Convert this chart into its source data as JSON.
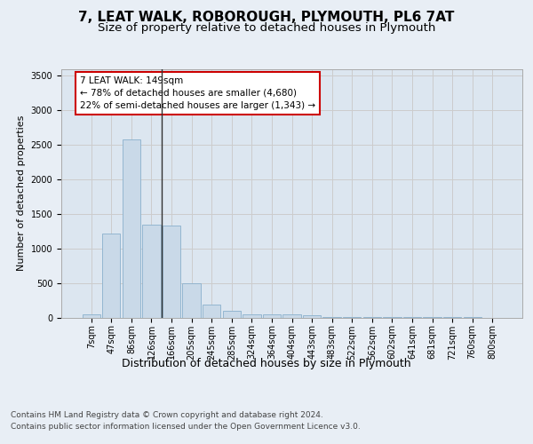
{
  "title1": "7, LEAT WALK, ROBOROUGH, PLYMOUTH, PL6 7AT",
  "title2": "Size of property relative to detached houses in Plymouth",
  "xlabel": "Distribution of detached houses by size in Plymouth",
  "ylabel": "Number of detached properties",
  "bar_labels": [
    "7sqm",
    "47sqm",
    "86sqm",
    "126sqm",
    "166sqm",
    "205sqm",
    "245sqm",
    "285sqm",
    "324sqm",
    "364sqm",
    "404sqm",
    "443sqm",
    "483sqm",
    "522sqm",
    "562sqm",
    "602sqm",
    "641sqm",
    "681sqm",
    "721sqm",
    "760sqm",
    "800sqm"
  ],
  "bar_values": [
    50,
    1220,
    2580,
    1340,
    1330,
    490,
    185,
    100,
    50,
    45,
    40,
    35,
    5,
    2,
    1,
    1,
    1,
    1,
    1,
    1,
    0
  ],
  "bar_color": "#c9d9e8",
  "bar_edge_color": "#8ab0cc",
  "vline_x": 3.5,
  "vline_color": "#333333",
  "annotation_text": "7 LEAT WALK: 149sqm\n← 78% of detached houses are smaller (4,680)\n22% of semi-detached houses are larger (1,343) →",
  "annotation_box_color": "#ffffff",
  "annotation_box_edge_color": "#cc0000",
  "ylim": [
    0,
    3600
  ],
  "yticks": [
    0,
    500,
    1000,
    1500,
    2000,
    2500,
    3000,
    3500
  ],
  "grid_color": "#cccccc",
  "bg_color": "#e8eef5",
  "plot_bg_color": "#dce6f0",
  "footer1": "Contains HM Land Registry data © Crown copyright and database right 2024.",
  "footer2": "Contains public sector information licensed under the Open Government Licence v3.0.",
  "title1_fontsize": 11,
  "title2_fontsize": 9.5,
  "xlabel_fontsize": 9,
  "ylabel_fontsize": 8,
  "tick_fontsize": 7,
  "footer_fontsize": 6.5
}
